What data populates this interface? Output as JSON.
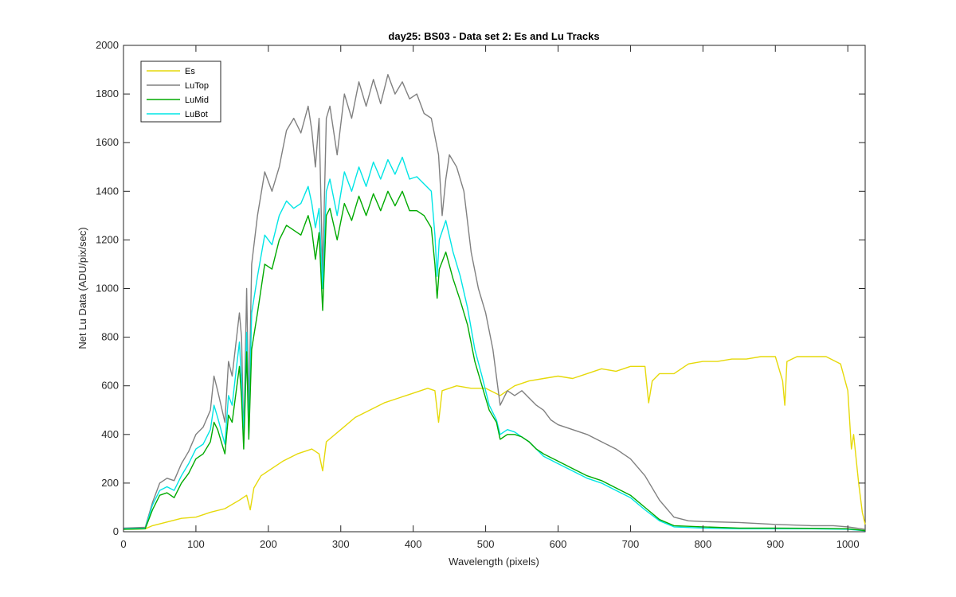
{
  "chart_data": {
    "type": "line",
    "title": "day25: BS03 - Data set 2: Es and Lu Tracks",
    "xlabel": "Wavelength (pixels)",
    "ylabel": "Net Lu Data (ADU/pix/sec)",
    "xlim": [
      0,
      1024
    ],
    "ylim": [
      0,
      2000
    ],
    "xticks": [
      0,
      100,
      200,
      300,
      400,
      500,
      600,
      700,
      800,
      900,
      1000
    ],
    "yticks": [
      0,
      200,
      400,
      600,
      800,
      1000,
      1200,
      1400,
      1600,
      1800,
      2000
    ],
    "legend_position": "top-left",
    "grid": false,
    "series": [
      {
        "name": "Es",
        "color": "#e6d90a",
        "points": [
          [
            0,
            10
          ],
          [
            30,
            12
          ],
          [
            40,
            25
          ],
          [
            60,
            40
          ],
          [
            80,
            55
          ],
          [
            100,
            60
          ],
          [
            120,
            80
          ],
          [
            140,
            95
          ],
          [
            160,
            130
          ],
          [
            170,
            150
          ],
          [
            175,
            90
          ],
          [
            180,
            180
          ],
          [
            190,
            230
          ],
          [
            200,
            250
          ],
          [
            220,
            290
          ],
          [
            240,
            320
          ],
          [
            260,
            340
          ],
          [
            270,
            320
          ],
          [
            275,
            250
          ],
          [
            280,
            370
          ],
          [
            300,
            420
          ],
          [
            320,
            470
          ],
          [
            340,
            500
          ],
          [
            360,
            530
          ],
          [
            380,
            550
          ],
          [
            400,
            570
          ],
          [
            420,
            590
          ],
          [
            430,
            580
          ],
          [
            435,
            450
          ],
          [
            440,
            580
          ],
          [
            460,
            600
          ],
          [
            480,
            590
          ],
          [
            500,
            590
          ],
          [
            520,
            560
          ],
          [
            540,
            600
          ],
          [
            560,
            620
          ],
          [
            580,
            630
          ],
          [
            600,
            640
          ],
          [
            620,
            630
          ],
          [
            640,
            650
          ],
          [
            660,
            670
          ],
          [
            680,
            660
          ],
          [
            700,
            680
          ],
          [
            720,
            680
          ],
          [
            725,
            530
          ],
          [
            730,
            620
          ],
          [
            740,
            650
          ],
          [
            760,
            650
          ],
          [
            780,
            690
          ],
          [
            800,
            700
          ],
          [
            820,
            700
          ],
          [
            840,
            710
          ],
          [
            860,
            710
          ],
          [
            880,
            720
          ],
          [
            900,
            720
          ],
          [
            910,
            620
          ],
          [
            913,
            520
          ],
          [
            916,
            700
          ],
          [
            930,
            720
          ],
          [
            950,
            720
          ],
          [
            970,
            720
          ],
          [
            990,
            690
          ],
          [
            1000,
            580
          ],
          [
            1005,
            340
          ],
          [
            1008,
            400
          ],
          [
            1015,
            200
          ],
          [
            1020,
            80
          ],
          [
            1024,
            30
          ]
        ]
      },
      {
        "name": "LuTop",
        "color": "#808080",
        "points": [
          [
            0,
            15
          ],
          [
            30,
            18
          ],
          [
            40,
            120
          ],
          [
            50,
            200
          ],
          [
            60,
            220
          ],
          [
            70,
            210
          ],
          [
            80,
            280
          ],
          [
            90,
            330
          ],
          [
            100,
            400
          ],
          [
            110,
            430
          ],
          [
            120,
            500
          ],
          [
            125,
            640
          ],
          [
            130,
            580
          ],
          [
            140,
            450
          ],
          [
            145,
            700
          ],
          [
            150,
            640
          ],
          [
            160,
            900
          ],
          [
            163,
            800
          ],
          [
            166,
            380
          ],
          [
            170,
            1000
          ],
          [
            173,
            500
          ],
          [
            177,
            1100
          ],
          [
            185,
            1300
          ],
          [
            195,
            1480
          ],
          [
            205,
            1400
          ],
          [
            215,
            1500
          ],
          [
            225,
            1650
          ],
          [
            235,
            1700
          ],
          [
            245,
            1640
          ],
          [
            255,
            1750
          ],
          [
            260,
            1650
          ],
          [
            265,
            1500
          ],
          [
            270,
            1700
          ],
          [
            275,
            1060
          ],
          [
            280,
            1700
          ],
          [
            285,
            1750
          ],
          [
            295,
            1550
          ],
          [
            305,
            1800
          ],
          [
            315,
            1700
          ],
          [
            325,
            1850
          ],
          [
            335,
            1750
          ],
          [
            345,
            1860
          ],
          [
            355,
            1760
          ],
          [
            365,
            1880
          ],
          [
            375,
            1800
          ],
          [
            385,
            1850
          ],
          [
            395,
            1780
          ],
          [
            405,
            1800
          ],
          [
            415,
            1720
          ],
          [
            425,
            1700
          ],
          [
            435,
            1550
          ],
          [
            440,
            1300
          ],
          [
            445,
            1450
          ],
          [
            450,
            1550
          ],
          [
            460,
            1500
          ],
          [
            470,
            1400
          ],
          [
            480,
            1150
          ],
          [
            490,
            1000
          ],
          [
            500,
            900
          ],
          [
            510,
            750
          ],
          [
            520,
            520
          ],
          [
            530,
            580
          ],
          [
            540,
            560
          ],
          [
            550,
            580
          ],
          [
            560,
            550
          ],
          [
            570,
            520
          ],
          [
            580,
            500
          ],
          [
            590,
            460
          ],
          [
            600,
            440
          ],
          [
            620,
            420
          ],
          [
            640,
            400
          ],
          [
            660,
            370
          ],
          [
            680,
            340
          ],
          [
            700,
            300
          ],
          [
            720,
            230
          ],
          [
            740,
            130
          ],
          [
            760,
            60
          ],
          [
            780,
            45
          ],
          [
            800,
            42
          ],
          [
            850,
            38
          ],
          [
            900,
            30
          ],
          [
            950,
            25
          ],
          [
            980,
            25
          ],
          [
            1000,
            20
          ],
          [
            1024,
            10
          ]
        ]
      },
      {
        "name": "LuMid",
        "color": "#00aa00",
        "points": [
          [
            0,
            10
          ],
          [
            30,
            12
          ],
          [
            40,
            90
          ],
          [
            50,
            150
          ],
          [
            60,
            160
          ],
          [
            70,
            140
          ],
          [
            80,
            200
          ],
          [
            90,
            240
          ],
          [
            100,
            300
          ],
          [
            110,
            320
          ],
          [
            120,
            370
          ],
          [
            125,
            450
          ],
          [
            130,
            420
          ],
          [
            140,
            320
          ],
          [
            145,
            480
          ],
          [
            150,
            450
          ],
          [
            160,
            680
          ],
          [
            163,
            550
          ],
          [
            166,
            340
          ],
          [
            170,
            740
          ],
          [
            173,
            380
          ],
          [
            177,
            750
          ],
          [
            185,
            900
          ],
          [
            195,
            1100
          ],
          [
            205,
            1080
          ],
          [
            215,
            1200
          ],
          [
            225,
            1260
          ],
          [
            235,
            1240
          ],
          [
            245,
            1220
          ],
          [
            255,
            1300
          ],
          [
            260,
            1240
          ],
          [
            265,
            1120
          ],
          [
            270,
            1230
          ],
          [
            275,
            910
          ],
          [
            280,
            1300
          ],
          [
            285,
            1330
          ],
          [
            295,
            1200
          ],
          [
            305,
            1350
          ],
          [
            315,
            1280
          ],
          [
            325,
            1380
          ],
          [
            335,
            1300
          ],
          [
            345,
            1390
          ],
          [
            355,
            1320
          ],
          [
            365,
            1400
          ],
          [
            375,
            1340
          ],
          [
            385,
            1400
          ],
          [
            395,
            1320
          ],
          [
            405,
            1320
          ],
          [
            415,
            1300
          ],
          [
            425,
            1250
          ],
          [
            430,
            1100
          ],
          [
            433,
            960
          ],
          [
            436,
            1080
          ],
          [
            445,
            1150
          ],
          [
            455,
            1040
          ],
          [
            465,
            950
          ],
          [
            475,
            850
          ],
          [
            485,
            700
          ],
          [
            495,
            600
          ],
          [
            505,
            500
          ],
          [
            515,
            450
          ],
          [
            520,
            380
          ],
          [
            530,
            400
          ],
          [
            540,
            400
          ],
          [
            550,
            390
          ],
          [
            560,
            370
          ],
          [
            570,
            340
          ],
          [
            580,
            320
          ],
          [
            600,
            290
          ],
          [
            620,
            260
          ],
          [
            640,
            230
          ],
          [
            660,
            210
          ],
          [
            680,
            180
          ],
          [
            700,
            150
          ],
          [
            720,
            100
          ],
          [
            740,
            50
          ],
          [
            760,
            25
          ],
          [
            800,
            20
          ],
          [
            850,
            15
          ],
          [
            900,
            15
          ],
          [
            950,
            14
          ],
          [
            1000,
            12
          ],
          [
            1024,
            5
          ]
        ]
      },
      {
        "name": "LuBot",
        "color": "#00e5e5",
        "points": [
          [
            0,
            12
          ],
          [
            30,
            14
          ],
          [
            40,
            110
          ],
          [
            50,
            170
          ],
          [
            60,
            185
          ],
          [
            70,
            170
          ],
          [
            80,
            230
          ],
          [
            90,
            280
          ],
          [
            100,
            340
          ],
          [
            110,
            360
          ],
          [
            120,
            420
          ],
          [
            125,
            520
          ],
          [
            130,
            470
          ],
          [
            140,
            360
          ],
          [
            145,
            560
          ],
          [
            150,
            520
          ],
          [
            160,
            780
          ],
          [
            163,
            620
          ],
          [
            166,
            400
          ],
          [
            170,
            820
          ],
          [
            173,
            400
          ],
          [
            177,
            900
          ],
          [
            185,
            1050
          ],
          [
            195,
            1220
          ],
          [
            205,
            1180
          ],
          [
            215,
            1300
          ],
          [
            225,
            1360
          ],
          [
            235,
            1330
          ],
          [
            245,
            1350
          ],
          [
            255,
            1420
          ],
          [
            260,
            1350
          ],
          [
            265,
            1250
          ],
          [
            270,
            1330
          ],
          [
            275,
            1000
          ],
          [
            280,
            1400
          ],
          [
            285,
            1450
          ],
          [
            295,
            1300
          ],
          [
            305,
            1480
          ],
          [
            315,
            1400
          ],
          [
            325,
            1500
          ],
          [
            335,
            1420
          ],
          [
            345,
            1520
          ],
          [
            355,
            1450
          ],
          [
            365,
            1530
          ],
          [
            375,
            1470
          ],
          [
            385,
            1540
          ],
          [
            395,
            1450
          ],
          [
            405,
            1460
          ],
          [
            415,
            1430
          ],
          [
            425,
            1400
          ],
          [
            430,
            1220
          ],
          [
            433,
            1050
          ],
          [
            436,
            1200
          ],
          [
            445,
            1280
          ],
          [
            455,
            1150
          ],
          [
            465,
            1050
          ],
          [
            475,
            920
          ],
          [
            485,
            750
          ],
          [
            495,
            640
          ],
          [
            505,
            520
          ],
          [
            515,
            460
          ],
          [
            520,
            400
          ],
          [
            530,
            420
          ],
          [
            540,
            410
          ],
          [
            550,
            390
          ],
          [
            560,
            370
          ],
          [
            570,
            340
          ],
          [
            580,
            310
          ],
          [
            600,
            280
          ],
          [
            620,
            250
          ],
          [
            640,
            220
          ],
          [
            660,
            200
          ],
          [
            680,
            170
          ],
          [
            700,
            140
          ],
          [
            720,
            90
          ],
          [
            740,
            45
          ],
          [
            760,
            20
          ],
          [
            800,
            15
          ],
          [
            850,
            12
          ],
          [
            900,
            12
          ],
          [
            950,
            12
          ],
          [
            1000,
            10
          ],
          [
            1024,
            4
          ]
        ]
      }
    ]
  }
}
